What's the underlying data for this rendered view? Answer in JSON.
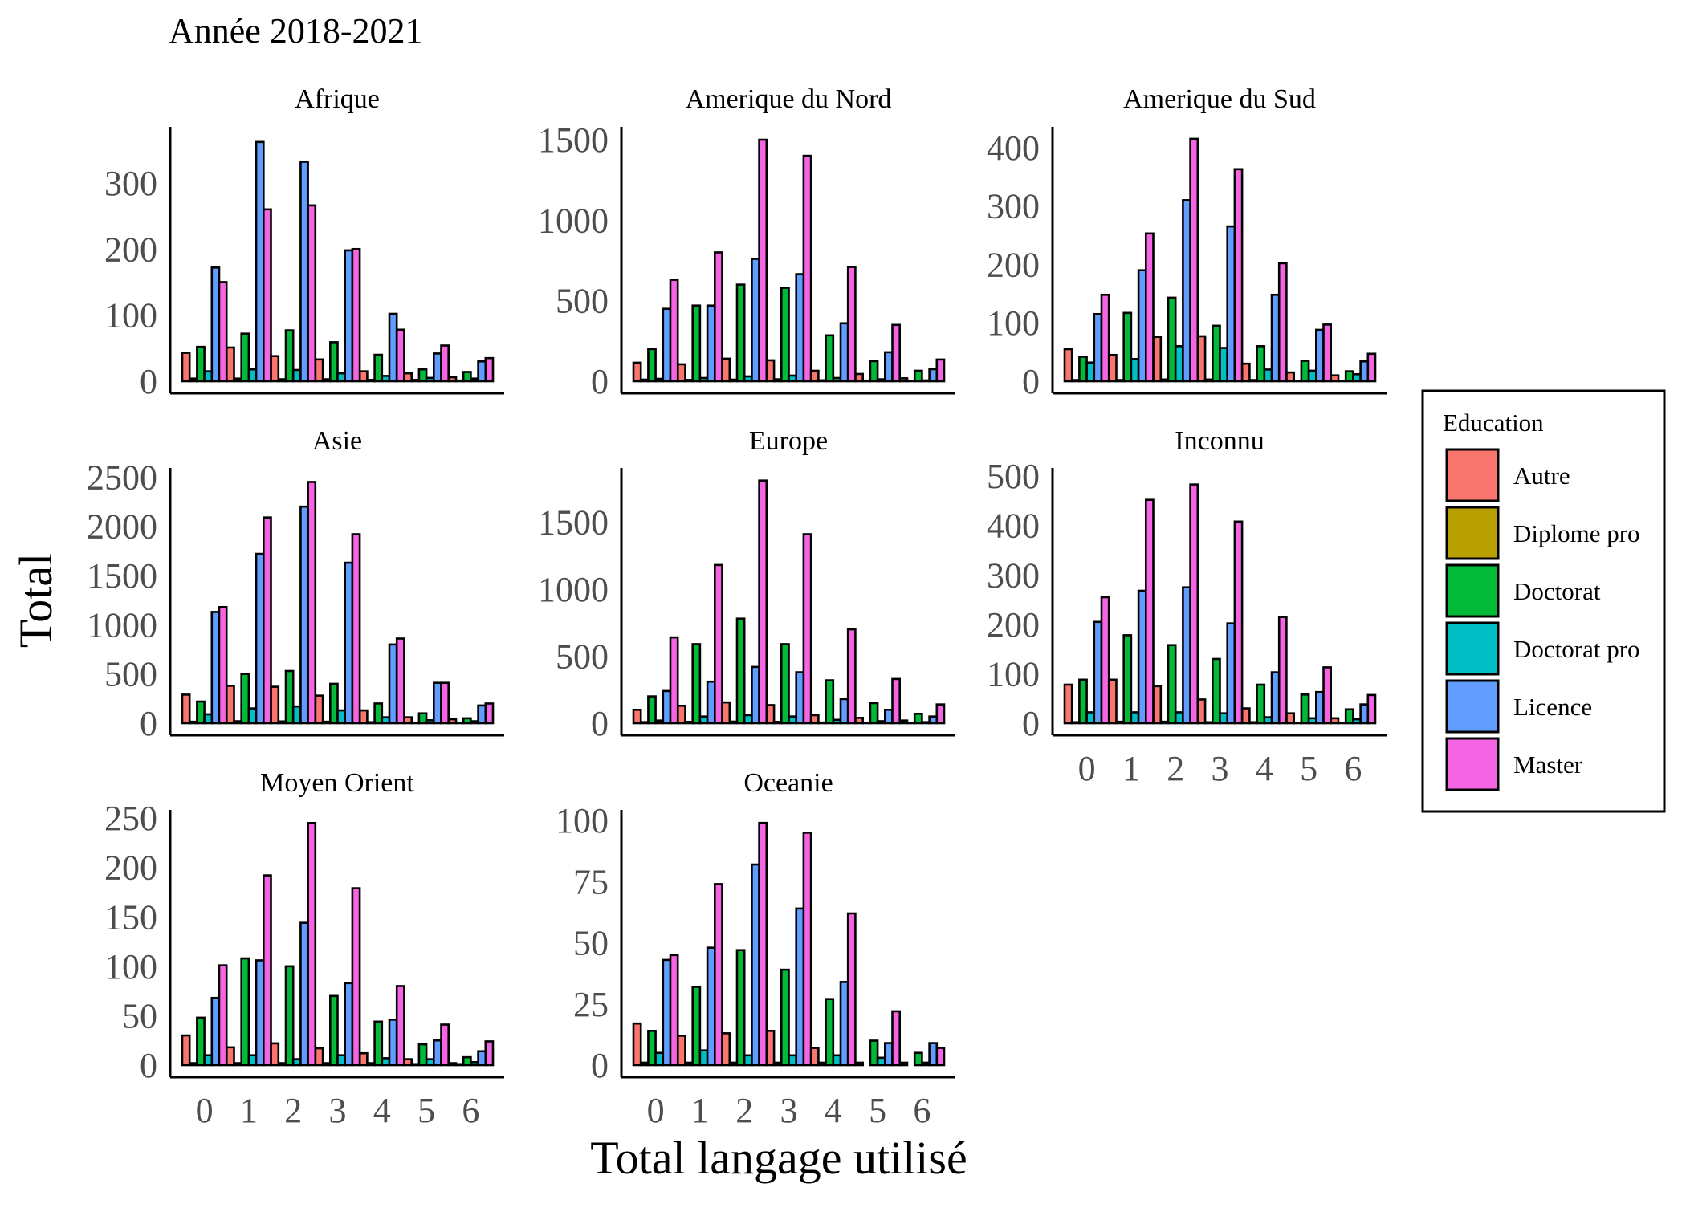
{
  "chart_data": {
    "type": "bar",
    "title": "Année 2018-2021",
    "xlabel": "Total langage utilisé",
    "ylabel": "Total",
    "x_categories": [
      "0",
      "1",
      "2",
      "3",
      "4",
      "5",
      "6"
    ],
    "legend": {
      "title": "Education",
      "position": "right",
      "series": [
        {
          "name": "Autre",
          "color": "#F8766D"
        },
        {
          "name": "Diplome pro",
          "color": "#B79F00"
        },
        {
          "name": "Doctorat",
          "color": "#00BA38"
        },
        {
          "name": "Doctorat pro",
          "color": "#00BFC4"
        },
        {
          "name": "Licence",
          "color": "#619CFF"
        },
        {
          "name": "Master",
          "color": "#F564E3"
        }
      ]
    },
    "panels": [
      {
        "name": "Afrique",
        "ylim": [
          0,
          380
        ],
        "yticks": [
          0,
          100,
          200,
          300
        ],
        "values": [
          [
            43,
            4,
            52,
            15,
            172,
            150
          ],
          [
            51,
            4,
            72,
            18,
            362,
            260
          ],
          [
            38,
            3,
            77,
            17,
            332,
            266
          ],
          [
            33,
            3,
            59,
            12,
            198,
            200
          ],
          [
            15,
            2,
            40,
            8,
            102,
            78
          ],
          [
            12,
            2,
            18,
            5,
            42,
            54
          ],
          [
            6,
            1,
            14,
            4,
            30,
            35
          ]
        ]
      },
      {
        "name": "Amerique du Nord",
        "ylim": [
          0,
          1560
        ],
        "yticks": [
          0,
          500,
          1000,
          1500
        ],
        "values": [
          [
            115,
            10,
            200,
            15,
            450,
            630
          ],
          [
            105,
            8,
            470,
            20,
            470,
            800
          ],
          [
            140,
            10,
            600,
            30,
            760,
            1500
          ],
          [
            130,
            12,
            580,
            35,
            665,
            1400
          ],
          [
            65,
            6,
            285,
            20,
            360,
            710
          ],
          [
            45,
            4,
            125,
            12,
            180,
            350
          ],
          [
            18,
            2,
            65,
            5,
            75,
            135
          ]
        ]
      },
      {
        "name": "Amerique du Sud",
        "ylim": [
          0,
          430
        ],
        "yticks": [
          0,
          100,
          200,
          300,
          400
        ],
        "values": [
          [
            55,
            2,
            42,
            32,
            115,
            148
          ],
          [
            45,
            2,
            117,
            38,
            190,
            253
          ],
          [
            76,
            3,
            143,
            60,
            310,
            415
          ],
          [
            77,
            3,
            95,
            57,
            265,
            363
          ],
          [
            30,
            2,
            60,
            20,
            148,
            202
          ],
          [
            15,
            1,
            35,
            18,
            88,
            97
          ],
          [
            10,
            1,
            17,
            12,
            34,
            47
          ]
        ]
      },
      {
        "name": "Asie",
        "ylim": [
          0,
          2560
        ],
        "yticks": [
          0,
          500,
          1000,
          1500,
          2000,
          2500
        ],
        "values": [
          [
            290,
            15,
            220,
            90,
            1130,
            1180
          ],
          [
            380,
            20,
            500,
            150,
            1720,
            2090
          ],
          [
            370,
            18,
            530,
            170,
            2200,
            2450
          ],
          [
            280,
            15,
            400,
            130,
            1630,
            1920
          ],
          [
            130,
            10,
            200,
            60,
            800,
            860
          ],
          [
            60,
            5,
            100,
            30,
            410,
            410
          ],
          [
            40,
            3,
            50,
            20,
            180,
            200
          ]
        ]
      },
      {
        "name": "Europe",
        "ylim": [
          0,
          1880
        ],
        "yticks": [
          0,
          500,
          1000,
          1500
        ],
        "values": [
          [
            100,
            8,
            200,
            20,
            240,
            640
          ],
          [
            130,
            10,
            590,
            50,
            310,
            1180
          ],
          [
            155,
            12,
            780,
            60,
            420,
            1810
          ],
          [
            135,
            10,
            590,
            50,
            380,
            1410
          ],
          [
            60,
            5,
            320,
            25,
            180,
            700
          ],
          [
            40,
            3,
            150,
            15,
            100,
            330
          ],
          [
            20,
            2,
            70,
            8,
            50,
            140
          ]
        ]
      },
      {
        "name": "Inconnu",
        "ylim": [
          0,
          510
        ],
        "yticks": [
          0,
          100,
          200,
          300,
          400,
          500
        ],
        "values": [
          [
            78,
            2,
            88,
            22,
            205,
            255
          ],
          [
            88,
            3,
            178,
            22,
            268,
            452
          ],
          [
            75,
            3,
            158,
            22,
            275,
            483
          ],
          [
            48,
            2,
            130,
            20,
            202,
            408
          ],
          [
            30,
            2,
            78,
            12,
            103,
            215
          ],
          [
            20,
            1,
            58,
            10,
            63,
            113
          ],
          [
            10,
            1,
            28,
            8,
            38,
            57
          ]
        ]
      },
      {
        "name": "Moyen Orient",
        "ylim": [
          0,
          255
        ],
        "yticks": [
          0,
          50,
          100,
          150,
          200,
          250
        ],
        "values": [
          [
            30,
            2,
            48,
            10,
            68,
            101
          ],
          [
            18,
            2,
            108,
            10,
            106,
            192
          ],
          [
            22,
            2,
            100,
            6,
            144,
            245
          ],
          [
            17,
            2,
            70,
            10,
            83,
            179
          ],
          [
            12,
            2,
            44,
            7,
            46,
            80
          ],
          [
            6,
            1,
            21,
            6,
            25,
            41
          ],
          [
            2,
            1,
            8,
            3,
            14,
            24
          ]
        ]
      },
      {
        "name": "Oceanie",
        "ylim": [
          0,
          103
        ],
        "yticks": [
          0,
          25,
          50,
          75,
          100
        ],
        "values": [
          [
            17,
            1,
            14,
            5,
            43,
            45
          ],
          [
            12,
            1,
            32,
            6,
            48,
            74
          ],
          [
            13,
            1,
            47,
            4,
            82,
            99
          ],
          [
            14,
            1,
            39,
            4,
            64,
            95
          ],
          [
            7,
            1,
            27,
            4,
            34,
            62
          ],
          [
            1,
            0,
            10,
            3,
            9,
            22
          ],
          [
            1,
            0,
            5,
            1,
            9,
            7
          ]
        ]
      }
    ]
  }
}
